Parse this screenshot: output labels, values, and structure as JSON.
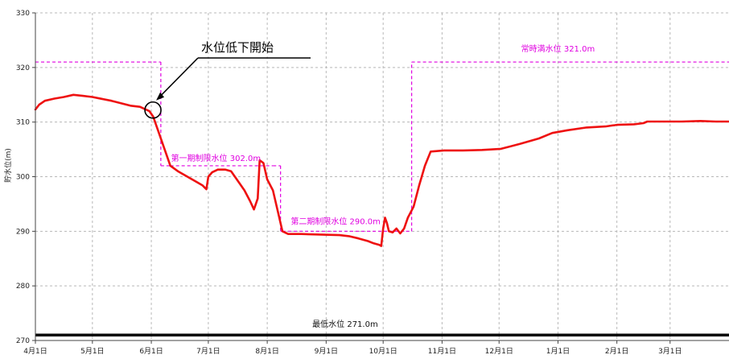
{
  "chart_data": {
    "type": "line",
    "ylabel": "貯水位(m)",
    "ylim": [
      270,
      330
    ],
    "yticks": [
      "270",
      "280",
      "290",
      "300",
      "310",
      "320",
      "330"
    ],
    "xlim": [
      0,
      365
    ],
    "grid": true,
    "xticks": [
      {
        "label": "4月1日",
        "day": 0
      },
      {
        "label": "5月1日",
        "day": 30
      },
      {
        "label": "6月1日",
        "day": 61
      },
      {
        "label": "7月1日",
        "day": 91
      },
      {
        "label": "8月1日",
        "day": 122
      },
      {
        "label": "9月1日",
        "day": 153
      },
      {
        "label": "10月1日",
        "day": 183
      },
      {
        "label": "11月1日",
        "day": 214
      },
      {
        "label": "12月1日",
        "day": 244
      },
      {
        "label": "1月1日",
        "day": 275
      },
      {
        "label": "2月1日",
        "day": 306
      },
      {
        "label": "3月1日",
        "day": 334
      }
    ],
    "series": [
      {
        "values": [
          [
            0,
            312.3
          ],
          [
            2,
            313.2
          ],
          [
            5,
            313.9
          ],
          [
            10,
            314.3
          ],
          [
            15,
            314.6
          ],
          [
            20,
            315.0
          ],
          [
            25,
            314.8
          ],
          [
            30,
            314.6
          ],
          [
            40,
            313.9
          ],
          [
            50,
            313.0
          ],
          [
            55,
            312.8
          ],
          [
            60,
            312.0
          ],
          [
            62,
            311.0
          ],
          [
            65,
            308.0
          ],
          [
            68,
            305.0
          ],
          [
            71,
            302.0
          ],
          [
            75,
            301.0
          ],
          [
            80,
            300.0
          ],
          [
            85,
            299.0
          ],
          [
            88,
            298.4
          ],
          [
            90,
            297.7
          ],
          [
            91,
            300.0
          ],
          [
            93,
            300.8
          ],
          [
            96,
            301.3
          ],
          [
            100,
            301.3
          ],
          [
            103,
            301.0
          ],
          [
            106,
            299.5
          ],
          [
            110,
            297.5
          ],
          [
            113,
            295.5
          ],
          [
            115,
            294.0
          ],
          [
            117,
            296.0
          ],
          [
            118,
            303.0
          ],
          [
            120,
            302.5
          ],
          [
            122,
            299.5
          ],
          [
            125,
            297.5
          ],
          [
            128,
            293.0
          ],
          [
            130,
            290.0
          ],
          [
            133,
            289.5
          ],
          [
            140,
            289.5
          ],
          [
            150,
            289.4
          ],
          [
            160,
            289.3
          ],
          [
            165,
            289.1
          ],
          [
            170,
            288.7
          ],
          [
            175,
            288.2
          ],
          [
            178,
            287.8
          ],
          [
            181,
            287.5
          ],
          [
            182,
            287.3
          ],
          [
            183,
            290.5
          ],
          [
            184,
            292.5
          ],
          [
            185,
            291.5
          ],
          [
            186,
            290.0
          ],
          [
            188,
            289.8
          ],
          [
            190,
            290.5
          ],
          [
            192,
            289.6
          ],
          [
            194,
            290.5
          ],
          [
            196,
            292.5
          ],
          [
            199,
            294.5
          ],
          [
            202,
            298.5
          ],
          [
            205,
            302.0
          ],
          [
            208,
            304.6
          ],
          [
            215,
            304.8
          ],
          [
            225,
            304.8
          ],
          [
            235,
            304.9
          ],
          [
            245,
            305.1
          ],
          [
            255,
            306.0
          ],
          [
            265,
            307.0
          ],
          [
            272,
            308.0
          ],
          [
            280,
            308.5
          ],
          [
            290,
            309.0
          ],
          [
            300,
            309.2
          ],
          [
            306,
            309.5
          ],
          [
            315,
            309.6
          ],
          [
            320,
            309.8
          ],
          [
            322,
            310.1
          ],
          [
            330,
            310.1
          ],
          [
            340,
            310.1
          ],
          [
            350,
            310.2
          ],
          [
            358,
            310.1
          ],
          [
            365,
            310.1
          ]
        ]
      }
    ],
    "levels": [
      {
        "label": "常時満水位 321.0m",
        "segments": [
          [
            0,
            62,
            321.0
          ],
          [
            198,
            365,
            321.0
          ]
        ]
      },
      {
        "label": "第一期制限水位 302.0m",
        "segments": [
          [
            71,
            125,
            302.0
          ]
        ]
      },
      {
        "label": "第二期制限水位 290.0m",
        "segments": [
          [
            130,
            195,
            290.0
          ]
        ]
      },
      {
        "label": "最低水位 271.0m",
        "segments": [
          [
            0,
            365,
            271.0
          ]
        ]
      }
    ],
    "annotations": [
      {
        "text": "水位低下開始",
        "day": 61,
        "value": 312.2
      }
    ]
  },
  "colors": {
    "series": "#ee1111",
    "restriction": "#e000e0",
    "min_level": "#000000",
    "grid": "#b8b8b8"
  }
}
